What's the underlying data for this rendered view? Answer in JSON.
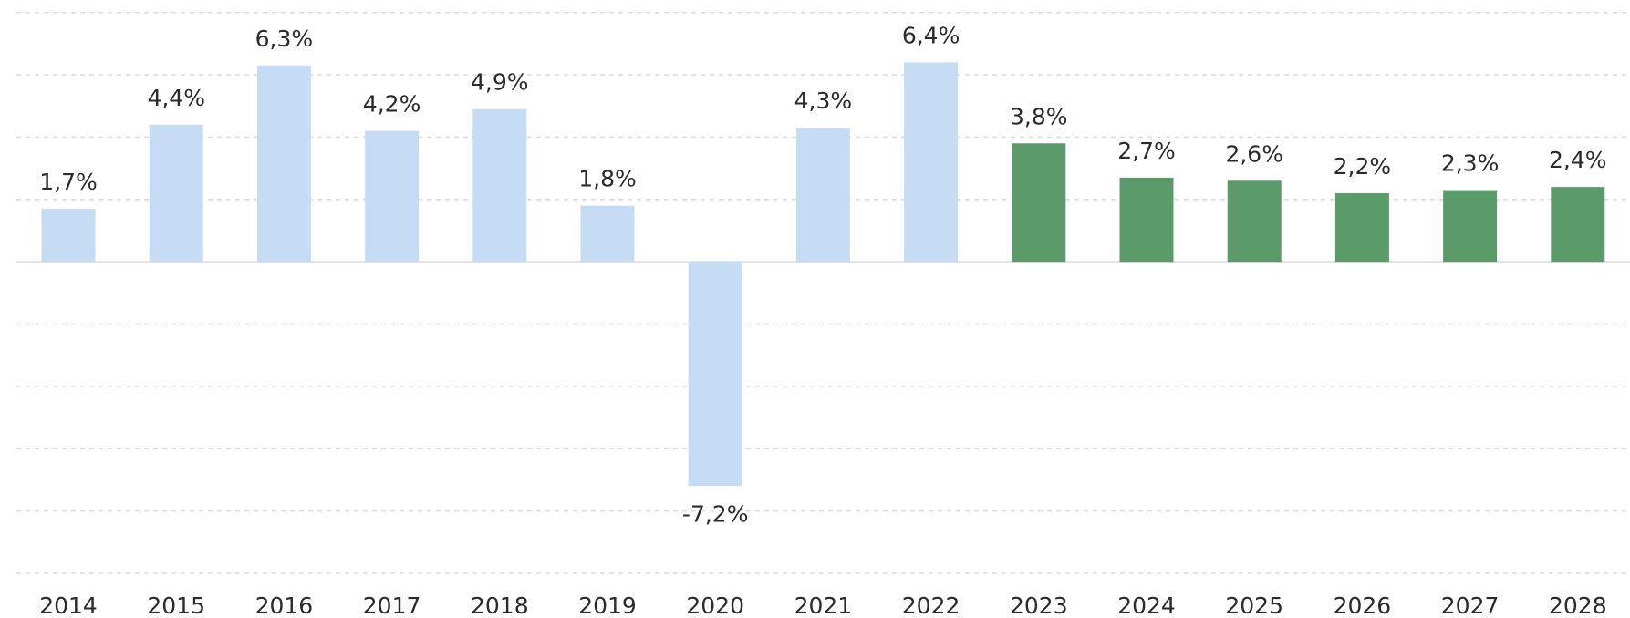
{
  "chart_data": {
    "type": "bar",
    "categories": [
      "2014",
      "2015",
      "2016",
      "2017",
      "2018",
      "2019",
      "2020",
      "2021",
      "2022",
      "2023",
      "2024",
      "2025",
      "2026",
      "2027",
      "2028"
    ],
    "values": [
      1.7,
      4.4,
      6.3,
      4.2,
      4.9,
      1.8,
      -7.2,
      4.3,
      6.4,
      3.8,
      2.7,
      2.6,
      2.2,
      2.3,
      2.4
    ],
    "value_labels": [
      "1,7%",
      "4,4%",
      "6,3%",
      "4,2%",
      "4,9%",
      "1,8%",
      "-7,2%",
      "4,3%",
      "6,4%",
      "3,8%",
      "2,7%",
      "2,6%",
      "2,2%",
      "2,3%",
      "2,4%"
    ],
    "colors": [
      "#c6dcf5",
      "#c6dcf5",
      "#c6dcf5",
      "#c6dcf5",
      "#c6dcf5",
      "#c6dcf5",
      "#c6dcf5",
      "#c6dcf5",
      "#c6dcf5",
      "#5b9a69",
      "#5b9a69",
      "#5b9a69",
      "#5b9a69",
      "#5b9a69",
      "#5b9a69"
    ],
    "ylim": [
      -10,
      8
    ],
    "yticks": [
      -10,
      -8,
      -6,
      -4,
      -2,
      0,
      2,
      4,
      6,
      8
    ],
    "grid": true
  }
}
